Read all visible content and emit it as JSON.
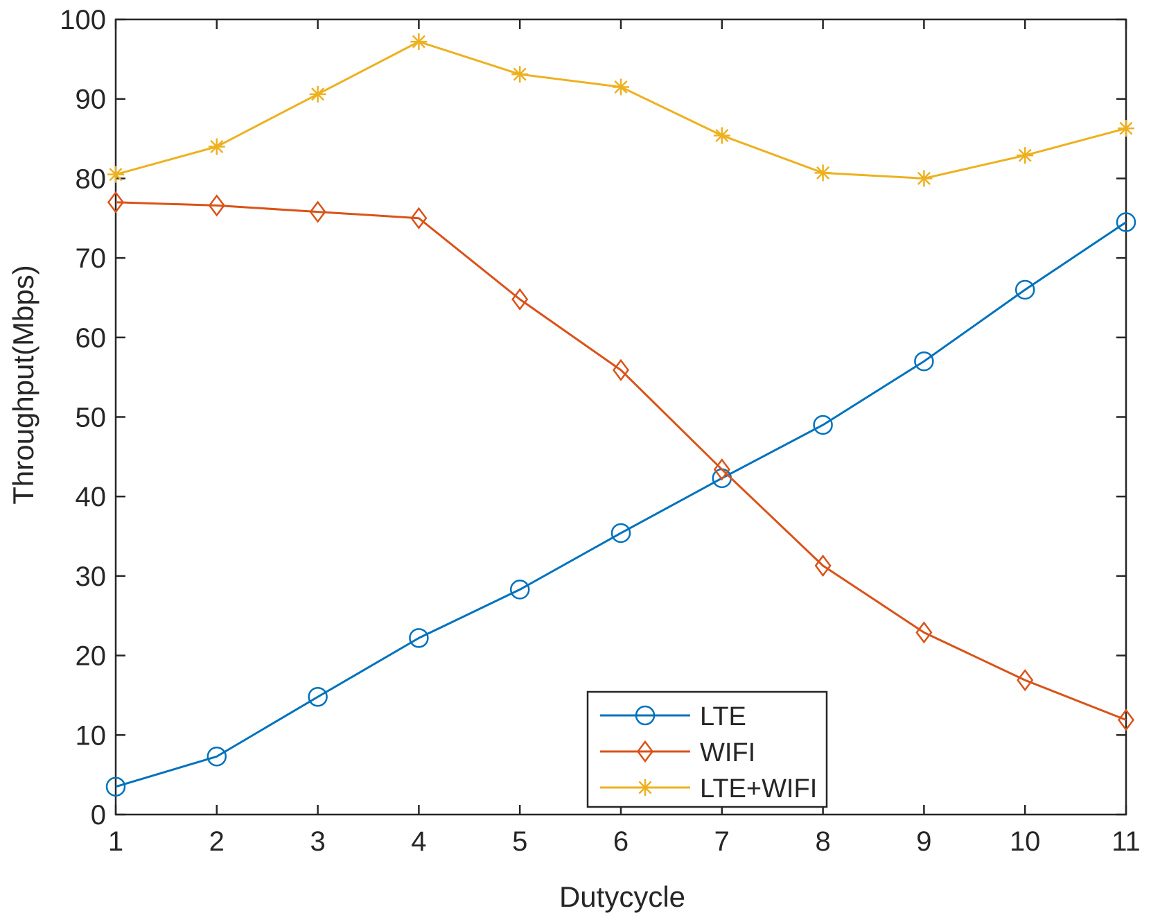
{
  "chart_data": {
    "type": "line",
    "title": "",
    "xlabel": "Dutycycle",
    "ylabel": "Throughput(Mbps)",
    "x": [
      1,
      2,
      3,
      4,
      5,
      6,
      7,
      8,
      9,
      10,
      11
    ],
    "xlim": [
      1,
      11
    ],
    "ylim": [
      0,
      100
    ],
    "xticks": [
      "1",
      "2",
      "3",
      "4",
      "5",
      "6",
      "7",
      "8",
      "9",
      "10",
      "11"
    ],
    "yticks": [
      "0",
      "10",
      "20",
      "30",
      "40",
      "50",
      "60",
      "70",
      "80",
      "90",
      "100"
    ],
    "grid": false,
    "legend_position": "bottom-center",
    "series": [
      {
        "name": "LTE",
        "color": "#0072BD",
        "marker": "circle",
        "values": [
          3.5,
          7.3,
          14.8,
          22.2,
          28.3,
          35.4,
          42.3,
          49.0,
          57.0,
          66.0,
          74.5
        ]
      },
      {
        "name": "WIFI",
        "color": "#D95319",
        "marker": "diamond",
        "values": [
          77.0,
          76.6,
          75.8,
          75.0,
          64.8,
          55.9,
          43.4,
          31.3,
          22.9,
          16.9,
          11.9
        ]
      },
      {
        "name": "LTE+WIFI",
        "color": "#EDB120",
        "marker": "asterisk",
        "values": [
          80.5,
          84.0,
          90.6,
          97.2,
          93.1,
          91.5,
          85.4,
          80.7,
          80.0,
          82.9,
          86.3
        ]
      }
    ]
  }
}
